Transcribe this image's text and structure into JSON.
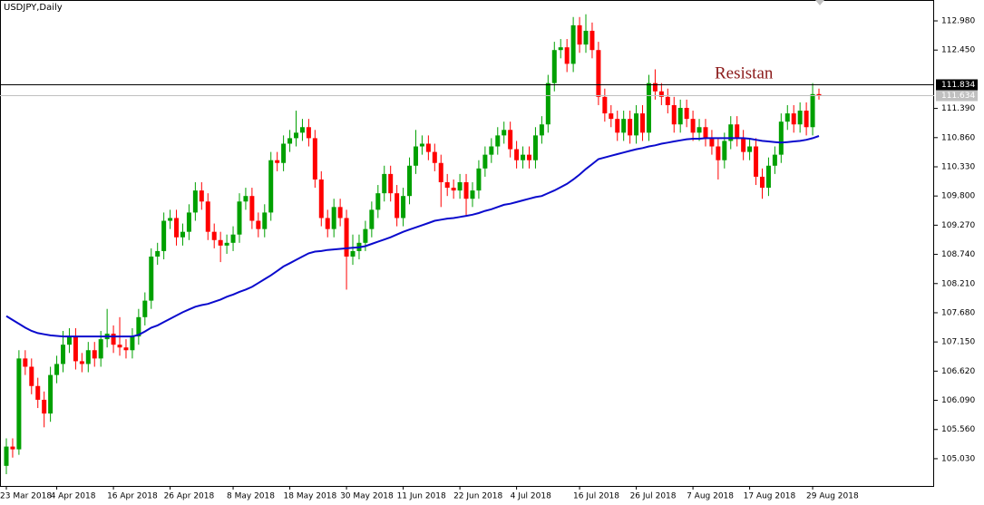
{
  "chart_data": {
    "type": "candlestick",
    "title": "USDJPY,Daily",
    "categories": [
      "23 Mar 2018",
      null,
      null,
      null,
      null,
      null,
      null,
      null,
      "4 Apr 2018",
      null,
      null,
      null,
      null,
      null,
      null,
      null,
      null,
      "16 Apr 2018",
      null,
      null,
      null,
      null,
      null,
      null,
      null,
      null,
      "26 Apr 2018",
      null,
      null,
      null,
      null,
      null,
      null,
      null,
      null,
      null,
      "8 May 2018",
      null,
      null,
      null,
      null,
      null,
      null,
      null,
      null,
      "18 May 2018",
      null,
      null,
      null,
      null,
      null,
      null,
      null,
      null,
      "30 May 2018",
      null,
      null,
      null,
      null,
      null,
      null,
      null,
      null,
      "11 Jun 2018",
      null,
      null,
      null,
      null,
      null,
      null,
      null,
      null,
      "22 Jun 2018",
      null,
      null,
      null,
      null,
      null,
      null,
      null,
      null,
      "4 Jul 2018",
      null,
      null,
      null,
      null,
      null,
      null,
      null,
      null,
      null,
      "16 Jul 2018",
      null,
      null,
      null,
      null,
      null,
      null,
      null,
      null,
      "26 Jul 2018",
      null,
      null,
      null,
      null,
      null,
      null,
      null,
      null,
      "7 Aug 2018",
      null,
      null,
      null,
      null,
      null,
      null,
      null,
      null,
      "17 Aug 2018",
      null,
      null,
      null,
      null,
      null,
      null,
      null,
      null,
      null,
      "29 Aug 2018",
      null
    ],
    "open": [
      104.9,
      105.25,
      105.2,
      106.85,
      106.7,
      106.35,
      106.1,
      105.85,
      106.55,
      106.75,
      107.1,
      107.25,
      106.8,
      106.75,
      107.0,
      106.85,
      107.2,
      107.3,
      107.1,
      107.05,
      107.0,
      107.25,
      107.6,
      107.9,
      108.7,
      108.8,
      109.35,
      109.4,
      109.05,
      109.15,
      109.5,
      109.9,
      109.7,
      109.15,
      109.0,
      108.9,
      108.95,
      109.1,
      109.7,
      109.8,
      109.35,
      109.2,
      109.5,
      110.45,
      110.4,
      110.75,
      110.85,
      110.95,
      111.05,
      110.85,
      110.1,
      109.4,
      109.2,
      109.6,
      109.4,
      108.7,
      108.8,
      108.95,
      109.2,
      109.55,
      109.85,
      110.2,
      109.85,
      109.4,
      109.8,
      110.35,
      110.7,
      110.75,
      110.6,
      110.4,
      110.05,
      109.95,
      109.9,
      110.05,
      109.75,
      109.9,
      110.3,
      110.55,
      110.7,
      110.9,
      111.0,
      110.65,
      110.45,
      110.55,
      110.45,
      110.9,
      111.1,
      111.85,
      112.45,
      112.5,
      112.2,
      112.9,
      112.55,
      112.8,
      112.45,
      111.6,
      111.3,
      111.2,
      110.95,
      111.2,
      110.9,
      111.3,
      110.95,
      111.85,
      111.7,
      111.6,
      111.45,
      111.1,
      111.4,
      111.2,
      110.95,
      111.05,
      110.85,
      110.7,
      110.45,
      110.8,
      111.1,
      110.85,
      110.6,
      110.7,
      110.15,
      109.95,
      110.35,
      110.55,
      111.15,
      111.3,
      111.1,
      111.35,
      111.05,
      111.65
    ],
    "high": [
      105.4,
      105.4,
      107.0,
      107.0,
      106.85,
      106.5,
      106.25,
      106.7,
      106.9,
      107.35,
      107.4,
      107.4,
      106.95,
      107.15,
      107.15,
      107.35,
      107.75,
      107.45,
      107.6,
      107.2,
      107.4,
      107.75,
      108.05,
      108.85,
      108.95,
      109.5,
      109.55,
      109.55,
      109.3,
      109.65,
      110.05,
      110.05,
      109.85,
      109.3,
      109.15,
      109.1,
      109.25,
      109.85,
      109.95,
      109.95,
      109.5,
      109.65,
      110.6,
      110.6,
      110.9,
      111.0,
      111.35,
      111.2,
      111.2,
      111.0,
      110.25,
      109.55,
      109.75,
      109.75,
      109.55,
      109.1,
      109.1,
      109.35,
      109.7,
      110.0,
      110.35,
      110.35,
      110.0,
      109.95,
      110.5,
      111.0,
      110.9,
      110.9,
      110.75,
      110.55,
      110.2,
      110.1,
      110.2,
      110.2,
      110.05,
      110.45,
      110.7,
      110.85,
      111.05,
      111.15,
      111.15,
      110.8,
      110.7,
      110.7,
      111.05,
      111.25,
      112.0,
      112.6,
      112.65,
      112.65,
      113.05,
      113.05,
      113.1,
      112.95,
      112.6,
      111.75,
      111.45,
      111.35,
      111.35,
      111.35,
      111.45,
      111.45,
      112.0,
      112.1,
      111.85,
      111.75,
      111.6,
      111.55,
      111.55,
      111.35,
      111.2,
      111.2,
      111.0,
      110.85,
      110.95,
      111.25,
      111.25,
      111.0,
      110.85,
      110.85,
      110.3,
      110.5,
      110.7,
      111.3,
      111.45,
      111.45,
      111.5,
      111.5,
      111.85,
      111.75
    ],
    "low": [
      104.75,
      105.05,
      105.1,
      106.55,
      106.2,
      105.95,
      105.6,
      105.7,
      106.4,
      106.6,
      106.95,
      106.65,
      106.6,
      106.6,
      106.7,
      106.7,
      107.05,
      106.95,
      106.9,
      106.85,
      106.85,
      107.1,
      107.45,
      107.75,
      108.55,
      108.65,
      109.2,
      108.9,
      108.9,
      109.0,
      109.35,
      109.55,
      109.0,
      108.85,
      108.6,
      108.75,
      108.8,
      108.95,
      109.55,
      109.2,
      109.05,
      109.05,
      109.35,
      110.25,
      110.25,
      110.6,
      110.7,
      110.8,
      110.7,
      109.95,
      109.25,
      109.05,
      109.05,
      109.25,
      108.1,
      108.55,
      108.65,
      108.8,
      109.05,
      109.4,
      109.7,
      109.7,
      109.25,
      109.25,
      109.65,
      110.2,
      110.55,
      110.45,
      110.25,
      109.6,
      109.8,
      109.75,
      109.75,
      109.45,
      109.6,
      109.75,
      110.15,
      110.4,
      110.55,
      110.75,
      110.5,
      110.3,
      110.3,
      110.3,
      110.3,
      110.75,
      110.95,
      111.7,
      112.3,
      112.05,
      112.05,
      112.4,
      112.4,
      112.3,
      111.45,
      111.15,
      111.05,
      110.8,
      110.8,
      110.75,
      110.75,
      110.8,
      110.8,
      111.55,
      111.45,
      111.3,
      110.95,
      110.95,
      111.05,
      110.8,
      110.8,
      110.7,
      110.55,
      110.1,
      110.3,
      110.65,
      110.7,
      110.45,
      110.45,
      110.0,
      109.75,
      109.8,
      110.2,
      110.4,
      111.0,
      110.95,
      110.95,
      110.9,
      110.9,
      111.55
    ],
    "close": [
      105.25,
      105.2,
      106.85,
      106.7,
      106.35,
      106.1,
      105.85,
      106.55,
      106.75,
      107.1,
      107.25,
      106.8,
      106.75,
      107.0,
      106.85,
      107.2,
      107.3,
      107.1,
      107.05,
      107.0,
      107.25,
      107.6,
      107.9,
      108.7,
      108.8,
      109.35,
      109.4,
      109.05,
      109.15,
      109.5,
      109.9,
      109.7,
      109.15,
      109.0,
      108.9,
      108.95,
      109.1,
      109.7,
      109.8,
      109.35,
      109.2,
      109.5,
      110.45,
      110.4,
      110.75,
      110.85,
      110.95,
      111.05,
      110.85,
      110.1,
      109.4,
      109.2,
      109.6,
      109.4,
      108.7,
      108.8,
      108.95,
      109.2,
      109.55,
      109.85,
      110.2,
      109.85,
      109.4,
      109.8,
      110.35,
      110.7,
      110.75,
      110.6,
      110.4,
      110.05,
      109.95,
      109.9,
      110.05,
      109.75,
      109.9,
      110.3,
      110.55,
      110.7,
      110.9,
      111.0,
      110.65,
      110.45,
      110.55,
      110.45,
      110.9,
      111.1,
      111.85,
      112.45,
      112.5,
      112.2,
      112.9,
      112.55,
      112.8,
      112.45,
      111.6,
      111.3,
      111.2,
      110.95,
      111.2,
      110.9,
      111.3,
      110.95,
      111.85,
      111.7,
      111.6,
      111.45,
      111.1,
      111.4,
      111.2,
      110.95,
      111.05,
      110.85,
      110.7,
      110.45,
      110.8,
      111.1,
      110.85,
      110.6,
      110.7,
      110.15,
      109.95,
      110.35,
      110.55,
      111.15,
      111.3,
      111.1,
      111.35,
      111.05,
      111.65,
      111.63
    ],
    "up_color": "#00a000",
    "down_color": "#ff0000",
    "series": [
      {
        "color": "#0a0acd",
        "values": [
          107.62,
          107.55,
          107.48,
          107.41,
          107.35,
          107.31,
          107.29,
          107.27,
          107.26,
          107.25,
          107.25,
          107.25,
          107.25,
          107.25,
          107.25,
          107.25,
          107.25,
          107.25,
          107.25,
          107.25,
          107.25,
          107.28,
          107.34,
          107.41,
          107.45,
          107.51,
          107.57,
          107.63,
          107.69,
          107.74,
          107.79,
          107.82,
          107.84,
          107.88,
          107.92,
          107.97,
          108.01,
          108.06,
          108.1,
          108.15,
          108.22,
          108.29,
          108.36,
          108.44,
          108.52,
          108.58,
          108.64,
          108.7,
          108.76,
          108.79,
          108.8,
          108.82,
          108.83,
          108.84,
          108.85,
          108.86,
          108.87,
          108.89,
          108.93,
          108.97,
          109.01,
          109.05,
          109.1,
          109.15,
          109.19,
          109.23,
          109.27,
          109.31,
          109.35,
          109.37,
          109.39,
          109.4,
          109.42,
          109.44,
          109.46,
          109.49,
          109.53,
          109.56,
          109.6,
          109.64,
          109.66,
          109.69,
          109.72,
          109.75,
          109.78,
          109.8,
          109.85,
          109.9,
          109.96,
          110.02,
          110.1,
          110.19,
          110.29,
          110.38,
          110.47,
          110.5,
          110.53,
          110.56,
          110.59,
          110.62,
          110.65,
          110.67,
          110.7,
          110.72,
          110.75,
          110.77,
          110.79,
          110.81,
          110.83,
          110.84,
          110.84,
          110.85,
          110.85,
          110.85,
          110.85,
          110.85,
          110.85,
          110.85,
          110.84,
          110.82,
          110.8,
          110.79,
          110.78,
          110.77,
          110.78,
          110.79,
          110.8,
          110.82,
          110.85,
          110.89
        ]
      }
    ],
    "ylim": [
      104.535,
      113.359
    ],
    "yticks": [
      {
        "value": 112.98,
        "label": "112.980"
      },
      {
        "value": 112.45,
        "label": "112.450"
      },
      {
        "value": 111.39,
        "label": "111.390"
      },
      {
        "value": 110.86,
        "label": "110.860"
      },
      {
        "value": 110.33,
        "label": "110.330"
      },
      {
        "value": 109.8,
        "label": "109.800"
      },
      {
        "value": 109.27,
        "label": "109.270"
      },
      {
        "value": 108.74,
        "label": "108.740"
      },
      {
        "value": 108.21,
        "label": "108.210"
      },
      {
        "value": 107.68,
        "label": "107.680"
      },
      {
        "value": 107.15,
        "label": "107.150"
      },
      {
        "value": 106.62,
        "label": "106.620"
      },
      {
        "value": 106.09,
        "label": "106.090"
      },
      {
        "value": 105.56,
        "label": "105.560"
      },
      {
        "value": 105.03,
        "label": "105.030"
      }
    ],
    "hlines": [
      {
        "value": 111.834,
        "color": "#000000"
      },
      {
        "value": 111.634,
        "color": "#c0c0c0"
      }
    ],
    "annotation": {
      "text": "Resistan",
      "color": "#8b1a1a"
    }
  }
}
